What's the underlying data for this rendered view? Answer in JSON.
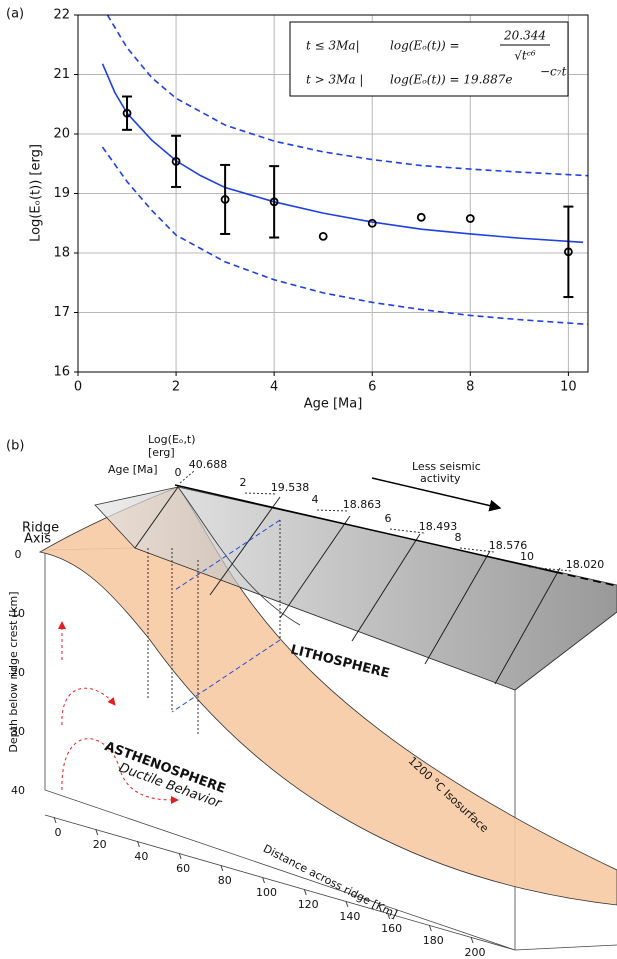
{
  "chart_data": {
    "type": "scatter",
    "panel": "(a)",
    "xlabel": "Age [Ma]",
    "ylabel": "Log(Eₒ(t)) [erg]",
    "x": [
      1,
      2,
      3,
      4,
      5,
      6,
      7,
      8,
      10
    ],
    "values": [
      20.35,
      19.54,
      18.9,
      18.86,
      18.28,
      18.5,
      18.6,
      18.58,
      18.02
    ],
    "errors": [
      0.28,
      0.43,
      0.58,
      0.6,
      null,
      null,
      null,
      null,
      0.76
    ],
    "color": "#000000",
    "fit": {
      "color": "#1f3fe0",
      "x": [
        0.5,
        0.75,
        1,
        1.5,
        2,
        2.5,
        3,
        4,
        5,
        6,
        7,
        8,
        9,
        10.3
      ],
      "values": [
        21.18,
        20.7,
        20.35,
        19.9,
        19.55,
        19.3,
        19.1,
        18.86,
        18.67,
        18.52,
        18.4,
        18.32,
        18.25,
        18.18
      ]
    },
    "upper": {
      "color": "#1f3fe0",
      "x": [
        0.6,
        1,
        1.5,
        2,
        3,
        4,
        5,
        6,
        7,
        8,
        9,
        10.4
      ],
      "values": [
        22,
        21.45,
        20.95,
        20.6,
        20.15,
        19.88,
        19.7,
        19.57,
        19.47,
        19.41,
        19.36,
        19.3
      ]
    },
    "lower": {
      "color": "#1f3fe0",
      "x": [
        0.5,
        1,
        1.5,
        2,
        3,
        4,
        5,
        6,
        7,
        8,
        9,
        10.4
      ],
      "values": [
        19.78,
        19.2,
        18.72,
        18.3,
        17.85,
        17.55,
        17.33,
        17.17,
        17.05,
        16.95,
        16.88,
        16.8
      ]
    },
    "xlim": [
      0,
      10.4
    ],
    "ylim": [
      16,
      22
    ],
    "xticks": [
      0,
      2,
      4,
      6,
      8,
      10
    ],
    "yticks": [
      16,
      17,
      18,
      19,
      20,
      21,
      22
    ],
    "grid": true,
    "equations": [
      {
        "condition": "t ≤ 3Ma|",
        "lhs": "log(Eₒ(t)) =",
        "numerator": "20.344",
        "denominator": "√tᶜ⁶"
      },
      {
        "condition": "t > 3Ma |",
        "lhs": "log(Eₒ(t)) = 19.887e",
        "exponent": "−c₇t"
      }
    ]
  },
  "diagram": {
    "panel": "(b)",
    "energy_label": [
      "Log(Eₒ,t)",
      "[erg]"
    ],
    "energies": [
      "40.688",
      "19.538",
      "18.863",
      "18.493",
      "18.576",
      "18.020"
    ],
    "age_label": "Age [Ma]",
    "ages": [
      "0",
      "2",
      "4",
      "6",
      "8",
      "10"
    ],
    "trend": [
      "Less seismic",
      "activity"
    ],
    "ridge_axis": [
      "Ridge",
      "Axis"
    ],
    "depth_label": "Depth below ridge crest [km]",
    "depths": [
      "0",
      "10",
      "20",
      "30",
      "40"
    ],
    "lithosphere": "LITHOSPHERE",
    "isosurface": "1200 °C Isosurface",
    "asthenosphere": "ASTHENOSPHERE",
    "ductile": "Ductile Behavior",
    "distances": [
      "0",
      "20",
      "40",
      "60",
      "80",
      "100",
      "120",
      "140",
      "160",
      "180",
      "200"
    ],
    "distance_label": "Distance across ridge [Km]"
  }
}
